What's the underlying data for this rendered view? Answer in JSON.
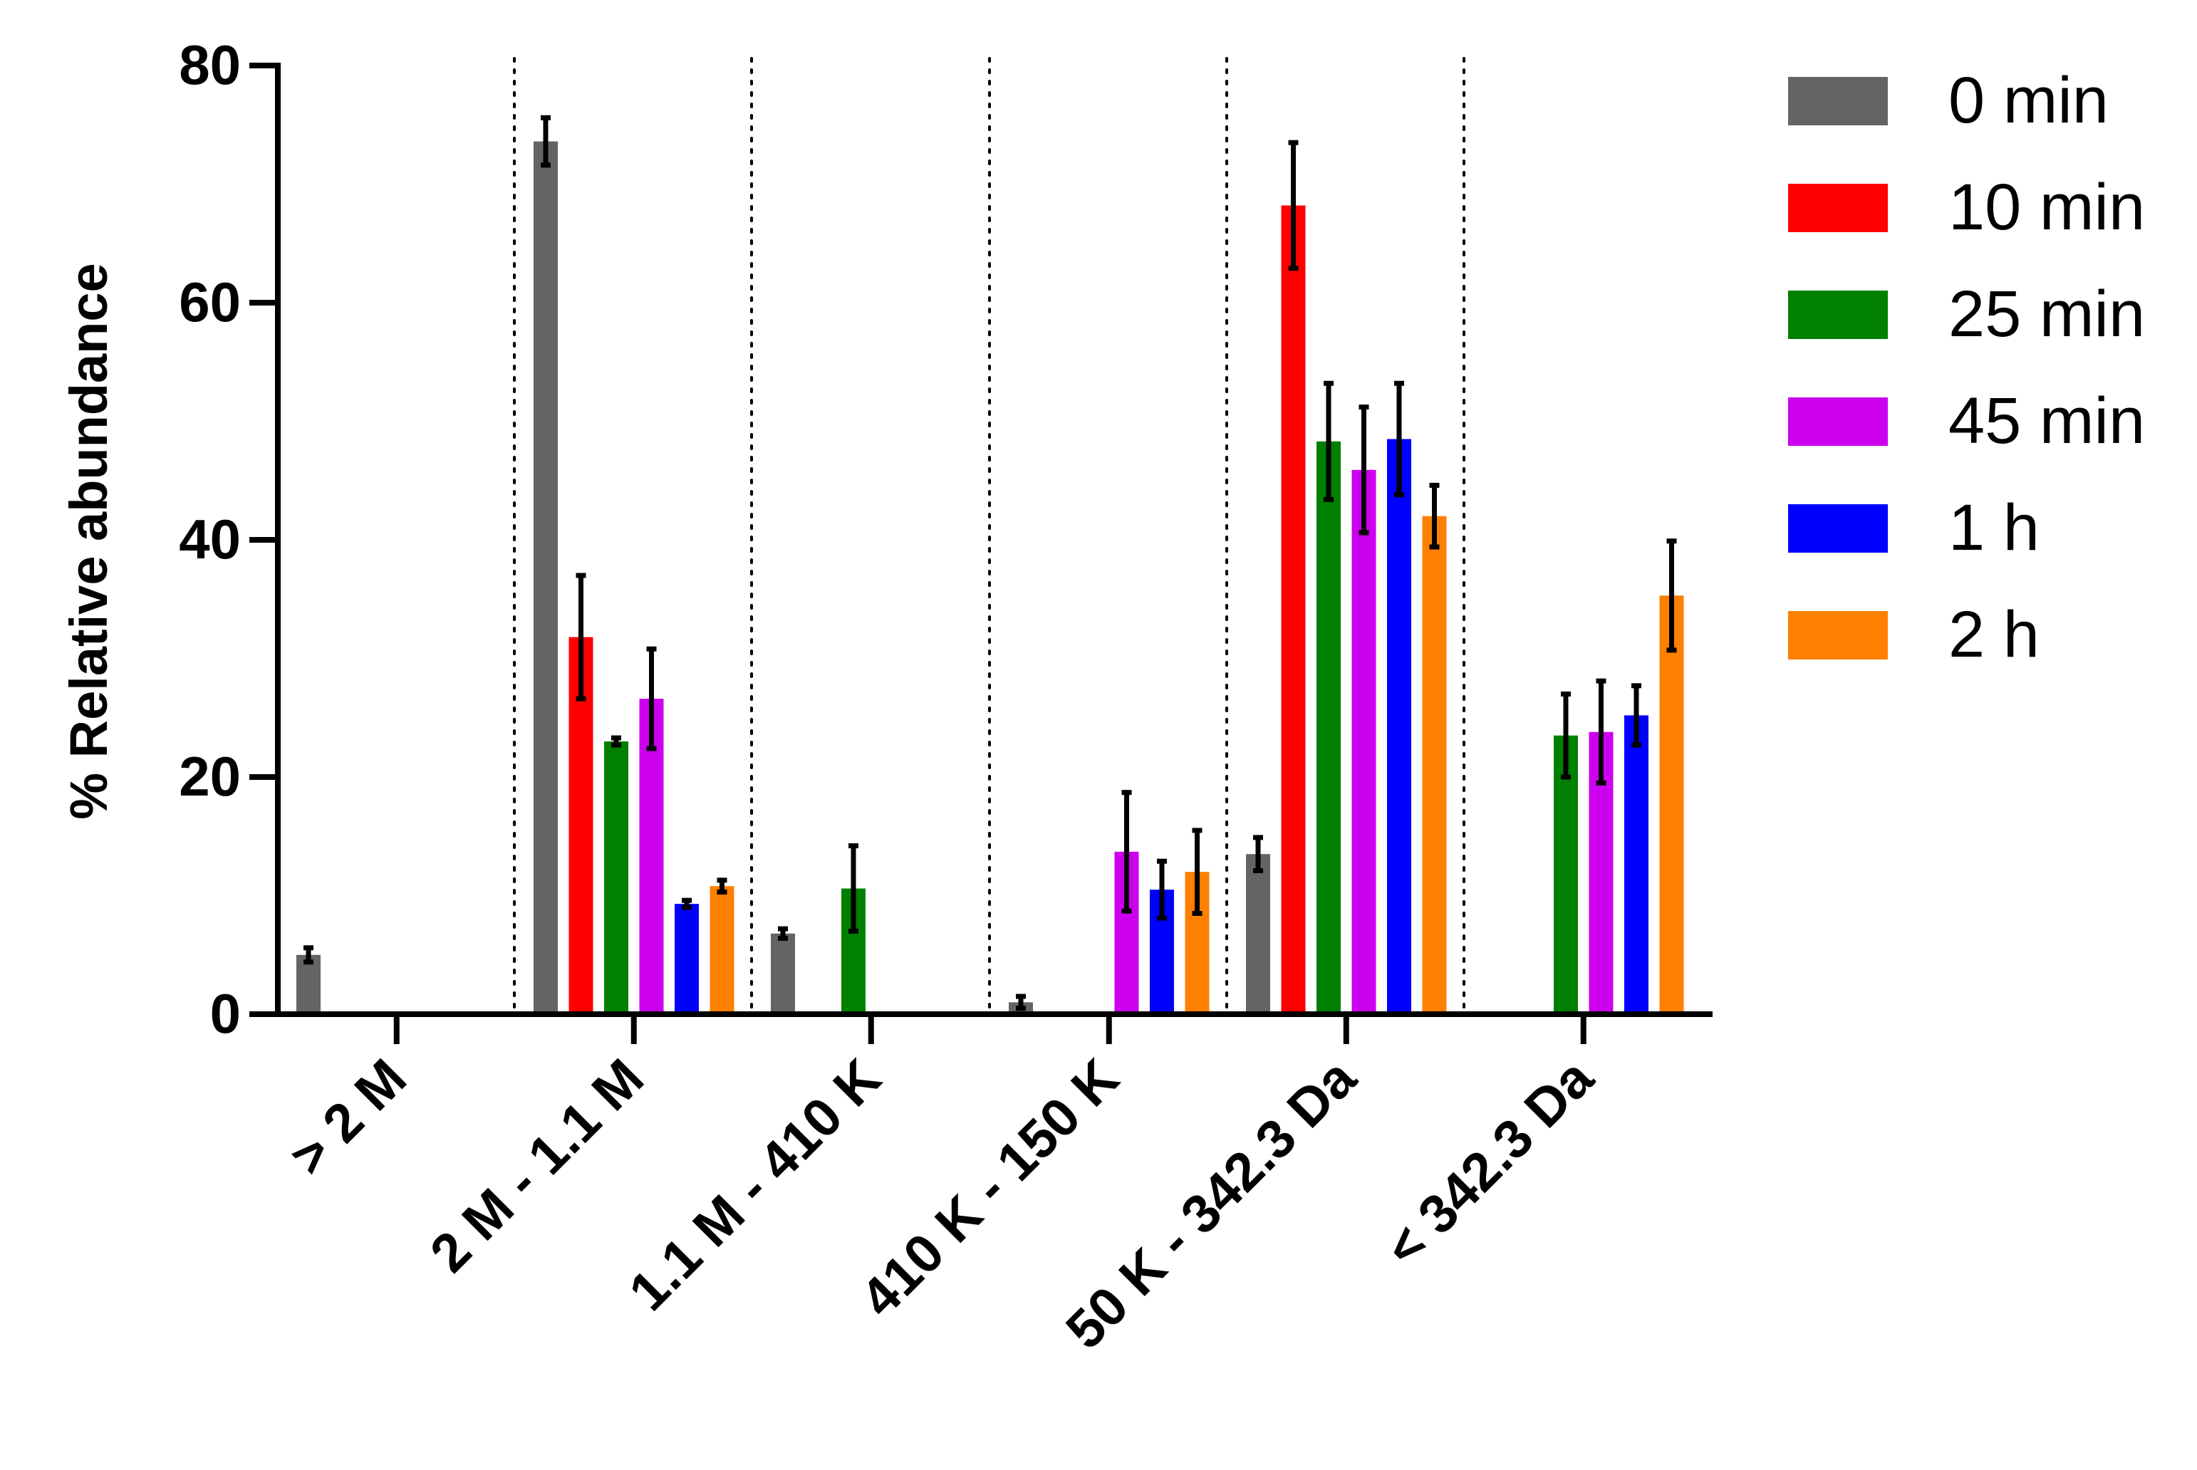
{
  "chart_data": {
    "type": "bar",
    "title": "",
    "ylabel": "% Relative abundance",
    "xlabel": "",
    "ylim": [
      0,
      80
    ],
    "yticks": [
      0,
      20,
      40,
      60,
      80
    ],
    "grid": false,
    "legend_position": "right",
    "categories": [
      "> 2 M",
      "2 M - 1.1 M",
      "1.1 M - 410 K",
      "410 K - 150 K",
      "50 K - 342.3 Da",
      "< 342.3 Da"
    ],
    "series": [
      {
        "name": "0 min",
        "color": "#646464",
        "values": [
          5.0,
          73.6,
          6.8,
          1.0,
          13.5,
          null
        ],
        "errors": [
          0.6,
          2.0,
          0.4,
          0.5,
          1.4,
          null
        ]
      },
      {
        "name": "10 min",
        "color": "#ff0000",
        "values": [
          null,
          31.8,
          null,
          null,
          68.2,
          null
        ],
        "errors": [
          null,
          5.2,
          null,
          null,
          5.3,
          null
        ]
      },
      {
        "name": "25 min",
        "color": "#008000",
        "values": [
          null,
          23.0,
          10.6,
          null,
          48.3,
          23.5
        ],
        "errors": [
          null,
          0.3,
          3.6,
          null,
          4.9,
          3.5
        ]
      },
      {
        "name": "45 min",
        "color": "#cc00ee",
        "values": [
          null,
          26.6,
          null,
          13.7,
          45.9,
          23.8
        ],
        "errors": [
          null,
          4.2,
          null,
          5.0,
          5.3,
          4.3
        ]
      },
      {
        "name": "1 h",
        "color": "#0000ff",
        "values": [
          null,
          9.3,
          null,
          10.5,
          48.5,
          25.2
        ],
        "errors": [
          null,
          0.3,
          null,
          2.4,
          4.7,
          2.5
        ]
      },
      {
        "name": "2 h",
        "color": "#ff8000",
        "values": [
          null,
          10.8,
          null,
          12.0,
          42.0,
          35.3
        ],
        "errors": [
          null,
          0.5,
          null,
          3.5,
          2.6,
          4.6
        ]
      }
    ]
  }
}
